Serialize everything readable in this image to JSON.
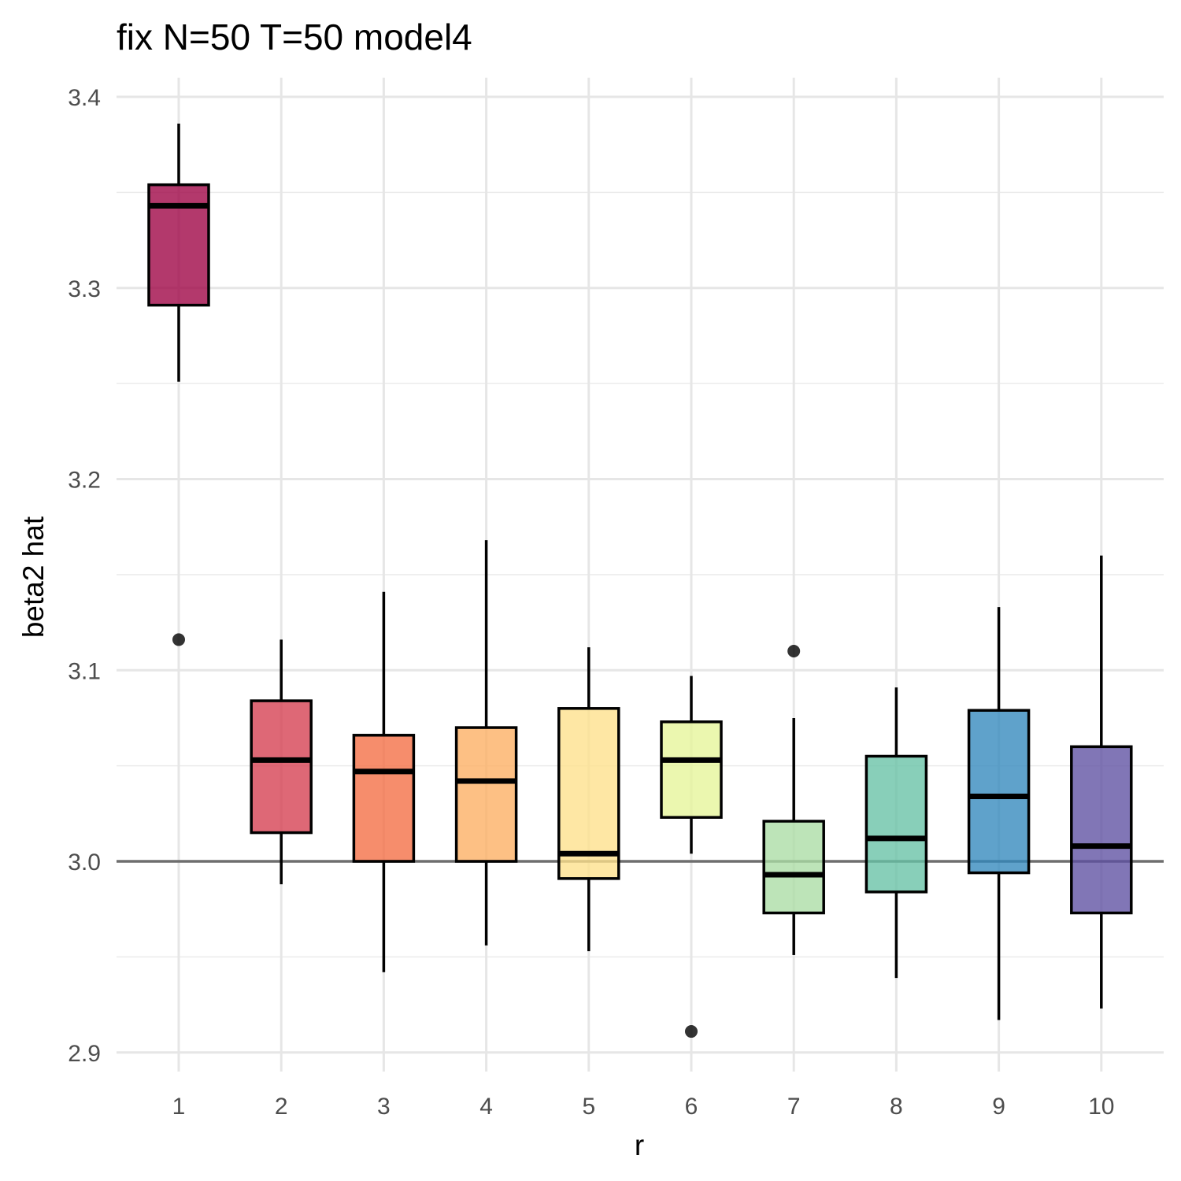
{
  "chart_data": {
    "type": "boxplot",
    "title": "fix N=50 T=50 model4",
    "xlabel": "r",
    "ylabel": "beta2  hat",
    "ylim": [
      2.89,
      3.41
    ],
    "y_ticks": [
      2.9,
      3.0,
      3.1,
      3.2,
      3.3,
      3.4
    ],
    "y_tick_labels": [
      "2.9",
      "3.0",
      "3.1",
      "3.2",
      "3.3",
      "3.4"
    ],
    "reference_line": 3.0,
    "grid": true,
    "categories": [
      "1",
      "2",
      "3",
      "4",
      "5",
      "6",
      "7",
      "8",
      "9",
      "10"
    ],
    "boxes": [
      {
        "category": "1",
        "whisker_low": 3.251,
        "q1": 3.291,
        "median": 3.343,
        "q3": 3.354,
        "whisker_high": 3.386,
        "outliers": [
          3.116
        ],
        "color": "#9E0142"
      },
      {
        "category": "2",
        "whisker_low": 2.988,
        "q1": 3.015,
        "median": 3.053,
        "q3": 3.084,
        "whisker_high": 3.116,
        "outliers": [],
        "color": "#D53E4F"
      },
      {
        "category": "3",
        "whisker_low": 2.942,
        "q1": 3.0,
        "median": 3.047,
        "q3": 3.066,
        "whisker_high": 3.141,
        "outliers": [],
        "color": "#F46D43"
      },
      {
        "category": "4",
        "whisker_low": 2.956,
        "q1": 3.0,
        "median": 3.042,
        "q3": 3.07,
        "whisker_high": 3.168,
        "outliers": [],
        "color": "#FDAE61"
      },
      {
        "category": "5",
        "whisker_low": 2.953,
        "q1": 2.991,
        "median": 3.004,
        "q3": 3.08,
        "whisker_high": 3.112,
        "outliers": [],
        "color": "#FEE08B"
      },
      {
        "category": "6",
        "whisker_low": 3.004,
        "q1": 3.023,
        "median": 3.053,
        "q3": 3.073,
        "whisker_high": 3.097,
        "outliers": [
          2.911
        ],
        "color": "#E6F598"
      },
      {
        "category": "7",
        "whisker_low": 2.951,
        "q1": 2.973,
        "median": 2.993,
        "q3": 3.021,
        "whisker_high": 3.075,
        "outliers": [
          3.11
        ],
        "color": "#ABDDA4"
      },
      {
        "category": "8",
        "whisker_low": 2.939,
        "q1": 2.984,
        "median": 3.012,
        "q3": 3.055,
        "whisker_high": 3.091,
        "outliers": [],
        "color": "#66C2A5"
      },
      {
        "category": "9",
        "whisker_low": 2.917,
        "q1": 2.994,
        "median": 3.034,
        "q3": 3.079,
        "whisker_high": 3.133,
        "outliers": [],
        "color": "#3288BD"
      },
      {
        "category": "10",
        "whisker_low": 2.923,
        "q1": 2.973,
        "median": 3.008,
        "q3": 3.06,
        "whisker_high": 3.16,
        "outliers": [],
        "color": "#5E4FA2"
      }
    ]
  }
}
